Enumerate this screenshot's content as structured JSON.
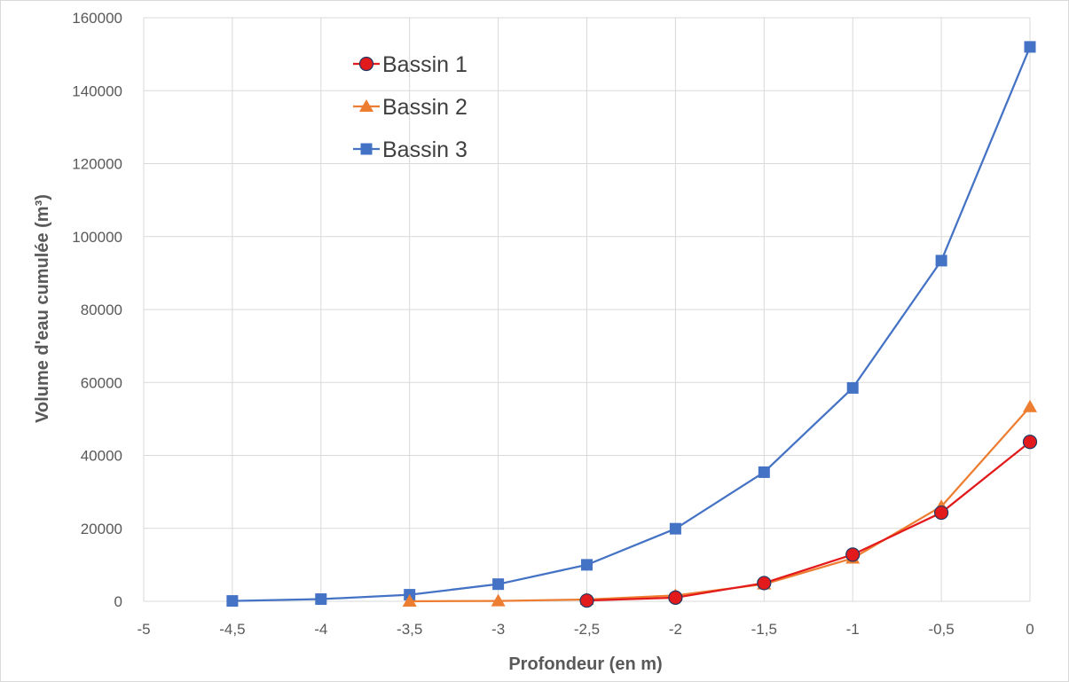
{
  "chart_data": {
    "type": "line",
    "title": "",
    "xlabel": "Profondeur (en m)",
    "ylabel": "Volume d'eau cumulée (m³)",
    "xlim": [
      -5,
      0
    ],
    "ylim": [
      0,
      160000
    ],
    "x_ticks": [
      {
        "v": -5,
        "label": "-5"
      },
      {
        "v": -4.5,
        "label": "-4,5"
      },
      {
        "v": -4,
        "label": "-4"
      },
      {
        "v": -3.5,
        "label": "-3,5"
      },
      {
        "v": -3,
        "label": "-3"
      },
      {
        "v": -2.5,
        "label": "-2,5"
      },
      {
        "v": -2,
        "label": "-2"
      },
      {
        "v": -1.5,
        "label": "-1,5"
      },
      {
        "v": -1,
        "label": "-1"
      },
      {
        "v": -0.5,
        "label": "-0,5"
      },
      {
        "v": 0,
        "label": "0"
      }
    ],
    "y_ticks": [
      {
        "v": 0,
        "label": "0"
      },
      {
        "v": 20000,
        "label": "20000"
      },
      {
        "v": 40000,
        "label": "40000"
      },
      {
        "v": 60000,
        "label": "60000"
      },
      {
        "v": 80000,
        "label": "80000"
      },
      {
        "v": 100000,
        "label": "100000"
      },
      {
        "v": 120000,
        "label": "120000"
      },
      {
        "v": 140000,
        "label": "140000"
      },
      {
        "v": 160000,
        "label": "160000"
      }
    ],
    "grid": true,
    "legend_position": "top-left",
    "series": [
      {
        "name": "Bassin 1",
        "color": "#e31a1c",
        "marker": "circle",
        "x": [
          -2.5,
          -2,
          -1.5,
          -1,
          -0.5,
          0
        ],
        "y": [
          200,
          1000,
          5000,
          12800,
          24300,
          43700
        ]
      },
      {
        "name": "Bassin 2",
        "color": "#ed7d31",
        "marker": "triangle",
        "x": [
          -3.5,
          -3,
          -2.5,
          -2,
          -1.5,
          -1,
          -0.5,
          0
        ],
        "y": [
          0,
          100,
          500,
          1600,
          4700,
          11800,
          26000,
          53300
        ]
      },
      {
        "name": "Bassin 3",
        "color": "#4472c4",
        "marker": "square",
        "x": [
          -4.5,
          -4,
          -3.5,
          -3,
          -2.5,
          -2,
          -1.5,
          -1,
          -0.5,
          0
        ],
        "y": [
          100,
          600,
          1800,
          4700,
          10000,
          19900,
          35400,
          58500,
          93400,
          152000
        ]
      }
    ]
  }
}
